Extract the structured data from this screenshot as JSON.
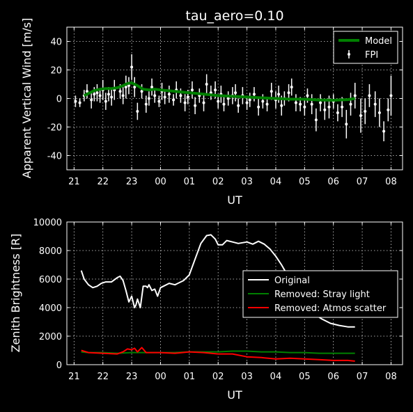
{
  "chart_data": [
    {
      "type": "scatter",
      "title": "tau_aero=0.10",
      "xlabel": "UT",
      "ylabel": "Apparent Vertical Wind [m/s]",
      "x_ticks": [
        "21",
        "22",
        "23",
        "00",
        "01",
        "02",
        "03",
        "04",
        "05",
        "06",
        "07",
        "08"
      ],
      "x_tick_hours": [
        21,
        22,
        23,
        24,
        25,
        26,
        27,
        28,
        29,
        30,
        31,
        32
      ],
      "xlim": [
        20.75,
        32.4
      ],
      "ylim": [
        -50,
        50
      ],
      "y_ticks": [
        -40,
        -20,
        0,
        20,
        40
      ],
      "grid": true,
      "legend_position": "top-right",
      "series": [
        {
          "name": "Model",
          "style": "line",
          "color": "#008000",
          "x": [
            21.35,
            21.5,
            21.7,
            21.9,
            22.1,
            22.3,
            22.5,
            22.7,
            22.85,
            23.0,
            23.2,
            23.4,
            23.6,
            23.8,
            24.0,
            24.5,
            25.0,
            25.5,
            26.0,
            26.5,
            27.0,
            27.5,
            28.0,
            28.5,
            29.0,
            29.5,
            30.0,
            30.5,
            30.75
          ],
          "y": [
            2,
            3.5,
            5.5,
            6.5,
            7,
            7,
            7.5,
            9,
            10.5,
            11,
            9,
            6.5,
            6,
            6.5,
            6,
            5,
            4,
            3,
            2,
            1.5,
            1,
            0.5,
            0,
            -0.5,
            -0.5,
            -1,
            -1.2,
            -0.8,
            0
          ]
        },
        {
          "name": "FPI",
          "style": "errorbar",
          "color": "#ffffff",
          "x": [
            21.05,
            21.2,
            21.35,
            21.45,
            21.6,
            21.7,
            21.8,
            21.9,
            22.0,
            22.1,
            22.2,
            22.3,
            22.4,
            22.6,
            22.7,
            22.8,
            22.9,
            23.0,
            23.1,
            23.2,
            23.35,
            23.5,
            23.6,
            23.7,
            23.8,
            23.95,
            24.05,
            24.15,
            24.3,
            24.45,
            24.55,
            24.7,
            24.85,
            24.95,
            25.1,
            25.2,
            25.35,
            25.5,
            25.6,
            25.75,
            25.9,
            26.0,
            26.1,
            26.2,
            26.35,
            26.5,
            26.6,
            26.7,
            26.85,
            27.0,
            27.1,
            27.25,
            27.4,
            27.55,
            27.7,
            27.85,
            28.0,
            28.1,
            28.2,
            28.3,
            28.45,
            28.55,
            28.7,
            28.85,
            29.0,
            29.1,
            29.25,
            29.4,
            29.55,
            29.7,
            29.85,
            30.0,
            30.15,
            30.3,
            30.45,
            30.6,
            30.75,
            30.95,
            31.1,
            31.25,
            31.45,
            31.6,
            31.75,
            31.9,
            32.0
          ],
          "y": [
            -2,
            -3,
            2,
            5,
            -1,
            3,
            4,
            2,
            6,
            -2,
            3,
            1,
            6,
            5,
            2,
            8,
            9,
            22,
            8,
            -9,
            5,
            -4,
            0,
            8,
            2,
            -2,
            5,
            1,
            3,
            -1,
            6,
            2,
            -3,
            1,
            6,
            -5,
            2,
            -3,
            10,
            4,
            6,
            -2,
            3,
            -4,
            0,
            2,
            4,
            -5,
            2,
            -3,
            -1,
            3,
            -6,
            -2,
            -4,
            5,
            -1,
            3,
            -5,
            0,
            4,
            8,
            -3,
            -4,
            -6,
            2,
            -4,
            -15,
            -3,
            -8,
            -6,
            -2,
            -10,
            -6,
            -18,
            -4,
            2,
            -12,
            -9,
            2,
            -4,
            -10,
            -23,
            -8,
            2
          ],
          "err": [
            4,
            3,
            4,
            5,
            6,
            5,
            6,
            5,
            7,
            6,
            5,
            6,
            7,
            5,
            6,
            8,
            6,
            9,
            7,
            6,
            5,
            6,
            5,
            6,
            5,
            4,
            6,
            5,
            6,
            4,
            6,
            5,
            6,
            5,
            6,
            6,
            5,
            6,
            7,
            5,
            6,
            5,
            6,
            5,
            5,
            6,
            6,
            5,
            6,
            5,
            5,
            5,
            6,
            5,
            5,
            6,
            6,
            6,
            7,
            5,
            6,
            6,
            6,
            5,
            6,
            5,
            7,
            8,
            6,
            7,
            8,
            5,
            6,
            7,
            10,
            8,
            9,
            12,
            9,
            8,
            9,
            10,
            7,
            8,
            14
          ]
        }
      ]
    },
    {
      "type": "line",
      "title": "",
      "xlabel": "UT",
      "ylabel": "Zenith Brightness [R]",
      "x_ticks": [
        "21",
        "22",
        "23",
        "00",
        "01",
        "02",
        "03",
        "04",
        "05",
        "06",
        "07",
        "08"
      ],
      "x_tick_hours": [
        21,
        22,
        23,
        24,
        25,
        26,
        27,
        28,
        29,
        30,
        31,
        32
      ],
      "xlim": [
        20.75,
        32.4
      ],
      "ylim": [
        0,
        10000
      ],
      "y_ticks": [
        0,
        2000,
        4000,
        6000,
        8000,
        10000
      ],
      "grid": true,
      "legend_position": "right",
      "series": [
        {
          "name": "Original",
          "color": "#ffffff",
          "x": [
            21.25,
            21.35,
            21.5,
            21.65,
            21.8,
            21.95,
            22.1,
            22.3,
            22.5,
            22.6,
            22.7,
            22.8,
            22.9,
            23.0,
            23.1,
            23.15,
            23.2,
            23.3,
            23.4,
            23.5,
            23.55,
            23.6,
            23.7,
            23.8,
            23.9,
            24.0,
            24.1,
            24.3,
            24.5,
            24.8,
            25.0,
            25.2,
            25.4,
            25.6,
            25.75,
            25.9,
            26.0,
            26.15,
            26.3,
            26.5,
            26.7,
            27.0,
            27.2,
            27.4,
            27.6,
            27.8,
            28.0,
            28.2,
            28.4,
            28.6,
            28.8,
            29.0,
            29.3,
            29.6,
            29.9,
            30.2,
            30.5,
            30.75
          ],
          "y": [
            6600,
            6000,
            5600,
            5400,
            5500,
            5700,
            5800,
            5800,
            6100,
            6200,
            5900,
            5200,
            4400,
            4800,
            4000,
            4200,
            4600,
            4000,
            5500,
            5500,
            5400,
            5600,
            5200,
            5300,
            4800,
            5400,
            5500,
            5700,
            5600,
            5900,
            6300,
            7400,
            8500,
            9050,
            9100,
            8800,
            8400,
            8400,
            8700,
            8600,
            8500,
            8600,
            8450,
            8650,
            8450,
            8100,
            7600,
            7000,
            6300,
            5500,
            4800,
            4200,
            3600,
            3200,
            2900,
            2750,
            2650,
            2650
          ]
        },
        {
          "name": "Removed: Stray light",
          "color": "#008000",
          "x": [
            21.25,
            21.5,
            22.0,
            22.5,
            23.0,
            23.5,
            24.0,
            24.5,
            25.0,
            25.5,
            26.0,
            26.5,
            27.0,
            27.5,
            28.0,
            28.5,
            29.0,
            29.5,
            30.0,
            30.5,
            30.75
          ],
          "y": [
            900,
            850,
            850,
            800,
            850,
            850,
            850,
            850,
            900,
            900,
            900,
            950,
            950,
            900,
            900,
            850,
            850,
            800,
            800,
            800,
            800
          ]
        },
        {
          "name": "Removed: Atmos scatter",
          "color": "#ff0000",
          "x": [
            21.25,
            21.5,
            22.0,
            22.5,
            22.7,
            22.85,
            23.0,
            23.1,
            23.2,
            23.35,
            23.5,
            24.0,
            24.5,
            25.0,
            25.5,
            26.0,
            26.5,
            27.0,
            27.5,
            28.0,
            28.5,
            29.0,
            29.5,
            30.0,
            30.5,
            30.75
          ],
          "y": [
            1000,
            850,
            800,
            750,
            900,
            1100,
            1050,
            1150,
            900,
            1200,
            850,
            850,
            800,
            900,
            850,
            750,
            750,
            550,
            500,
            400,
            450,
            400,
            350,
            300,
            300,
            250
          ]
        }
      ]
    }
  ]
}
